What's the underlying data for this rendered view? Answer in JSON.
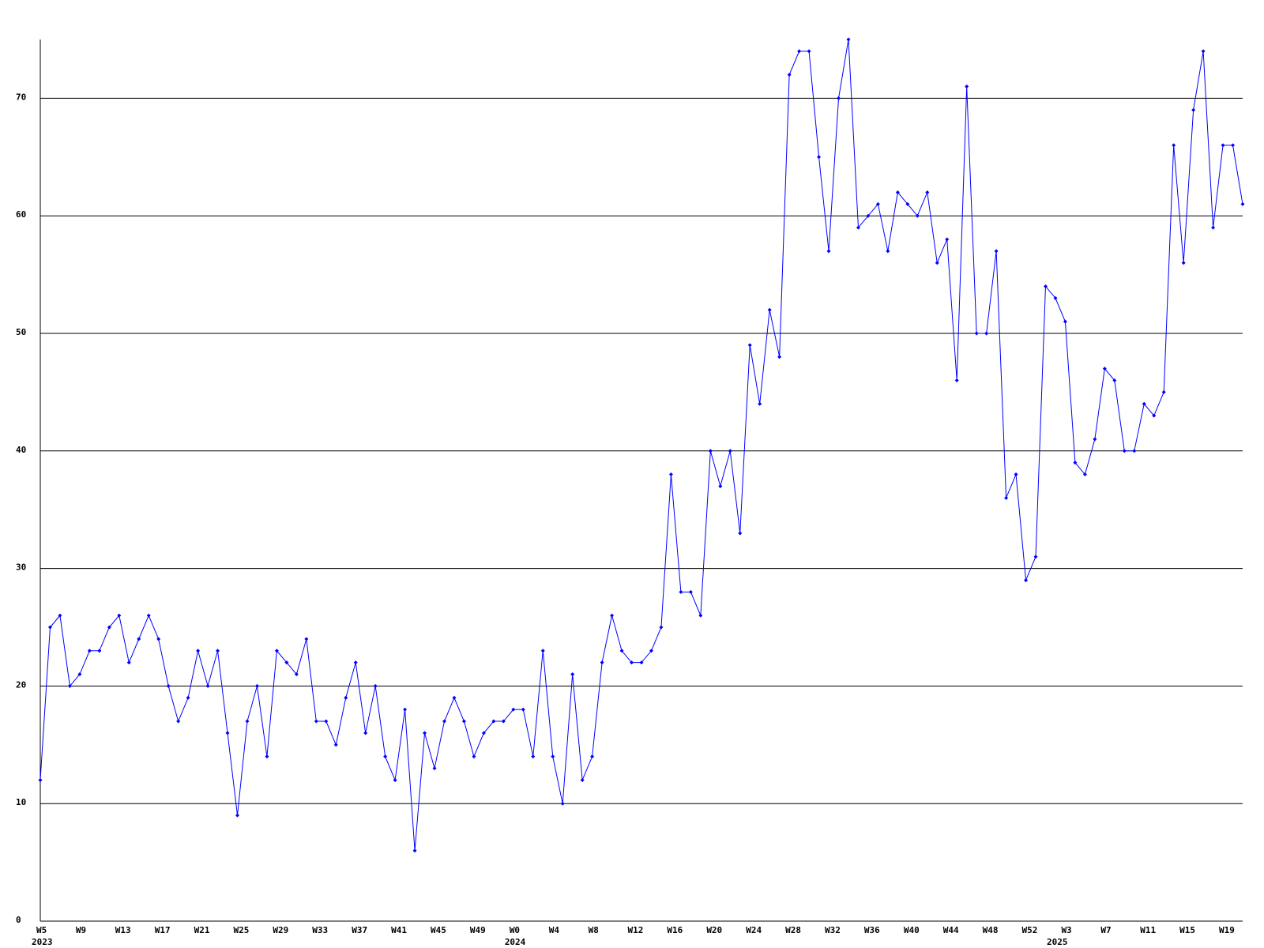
{
  "chart_data": {
    "type": "line",
    "categories": [
      "W5",
      null,
      null,
      null,
      "W9",
      null,
      null,
      null,
      "W13",
      null,
      null,
      null,
      "W17",
      null,
      null,
      null,
      "W21",
      null,
      null,
      null,
      "W25",
      null,
      null,
      null,
      "W29",
      null,
      null,
      null,
      "W33",
      null,
      null,
      null,
      "W37",
      null,
      null,
      null,
      "W41",
      null,
      null,
      null,
      "W45",
      null,
      null,
      null,
      "W49",
      null,
      null,
      null,
      "W0",
      null,
      null,
      null,
      "W4",
      null,
      null,
      null,
      "W8",
      null,
      null,
      null,
      "W12",
      null,
      null,
      null,
      "W16",
      null,
      null,
      null,
      "W20",
      null,
      null,
      null,
      "W24",
      null,
      null,
      null,
      "W28",
      null,
      null,
      null,
      "W32",
      null,
      null,
      null,
      "W36",
      null,
      null,
      null,
      "W40",
      null,
      null,
      null,
      "W44",
      null,
      null,
      null,
      "W48",
      null,
      null,
      null,
      "W52",
      null,
      null,
      null,
      "W3",
      null,
      null,
      null,
      "W7",
      null,
      null,
      null,
      "W11",
      null,
      null,
      null,
      "W15",
      null,
      null,
      null,
      "W19",
      null,
      null
    ],
    "years": [
      "2023",
      null,
      null,
      null,
      null,
      null,
      null,
      null,
      null,
      null,
      null,
      null,
      null,
      null,
      null,
      null,
      null,
      null,
      null,
      null,
      null,
      null,
      null,
      null,
      null,
      null,
      null,
      null,
      null,
      null,
      null,
      null,
      null,
      null,
      null,
      null,
      null,
      null,
      null,
      null,
      null,
      null,
      null,
      null,
      null,
      null,
      null,
      null,
      "2024",
      null,
      null,
      null,
      null,
      null,
      null,
      null,
      null,
      null,
      null,
      null,
      null,
      null,
      null,
      null,
      null,
      null,
      null,
      null,
      null,
      null,
      null,
      null,
      null,
      null,
      null,
      null,
      null,
      null,
      null,
      null,
      null,
      null,
      null,
      null,
      null,
      null,
      null,
      null,
      null,
      null,
      null,
      null,
      null,
      null,
      null,
      null,
      null,
      null,
      null,
      null,
      null,
      null,
      null,
      "2025",
      null,
      null,
      null,
      null,
      null,
      null,
      null,
      null,
      null,
      null,
      null,
      null,
      null,
      null,
      null,
      null,
      null,
      null,
      null,
      null,
      null
    ],
    "values": [
      12,
      25,
      26,
      20,
      21,
      23,
      23,
      25,
      26,
      22,
      24,
      26,
      24,
      20,
      17,
      19,
      23,
      20,
      23,
      16,
      9,
      17,
      20,
      14,
      23,
      22,
      21,
      24,
      17,
      17,
      15,
      19,
      22,
      16,
      20,
      14,
      12,
      18,
      6,
      16,
      13,
      17,
      19,
      17,
      14,
      16,
      17,
      17,
      18,
      18,
      14,
      23,
      14,
      10,
      21,
      12,
      14,
      22,
      26,
      23,
      22,
      22,
      23,
      25,
      38,
      28,
      28,
      26,
      40,
      37,
      40,
      33,
      49,
      44,
      52,
      48,
      72,
      74,
      74,
      65,
      57,
      70,
      75,
      59,
      60,
      61,
      57,
      62,
      61,
      60,
      62,
      56,
      58,
      46,
      71,
      50,
      50,
      57,
      36,
      38,
      29,
      31,
      54,
      53,
      51,
      39,
      38,
      41,
      47,
      46,
      40,
      40,
      44,
      43,
      45,
      66,
      56,
      69,
      74,
      59,
      66,
      66,
      61
    ],
    "color": "#0000ff",
    "ylim": [
      0,
      75
    ],
    "yticks": [
      0,
      10,
      20,
      30,
      40,
      50,
      60,
      70
    ],
    "grid": true
  }
}
